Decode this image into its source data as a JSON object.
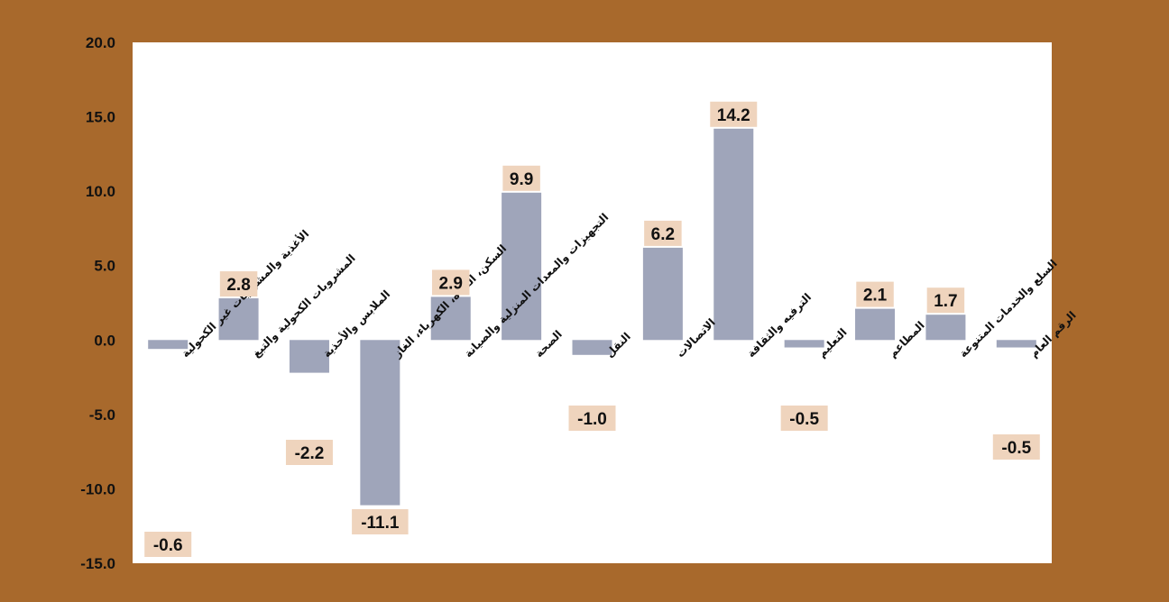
{
  "chart_data": {
    "type": "bar",
    "title": "",
    "xlabel": "",
    "ylabel": "",
    "ylim": [
      -15,
      20
    ],
    "yticks": [
      "20.0",
      "15.0",
      "10.0",
      "5.0",
      "0.0",
      "-5.0",
      "-10.0",
      "-15.0"
    ],
    "ytick_values": [
      20,
      15,
      10,
      5,
      0,
      -5,
      -10,
      -15
    ],
    "grid": false,
    "legend": "none",
    "categories": [
      "الأغذية والمشروبات غير الكحولية",
      "المشروبات الكحولية والتبغ",
      "الملابس والأحذية",
      "السكن، المياه، الكهرباء، الغاز",
      "التجهيزات والمعدات المنزلية والصيانة",
      "الصحة",
      "النقل",
      "الاتصالات",
      "الترفيه والثقافة",
      "التعليم",
      "المطاعم",
      "السلع والخدمات المتنوعة",
      "الرقم العام"
    ],
    "values": [
      -0.6,
      2.8,
      -2.2,
      -11.1,
      2.9,
      9.9,
      -1.0,
      6.2,
      14.2,
      -0.5,
      2.1,
      1.7,
      -0.5
    ],
    "data_labels": [
      "-0.6",
      "2.8",
      "-2.2",
      "-11.1",
      "2.9",
      "9.9",
      "-1.0",
      "6.2",
      "14.2",
      "-0.5",
      "2.1",
      "1.7",
      "-0.5"
    ],
    "colors": {
      "background": "#a8692c",
      "plot": "#ffffff",
      "bar": "#9fa5ba",
      "label_box": "#efd4bd",
      "text": "#111111"
    }
  }
}
